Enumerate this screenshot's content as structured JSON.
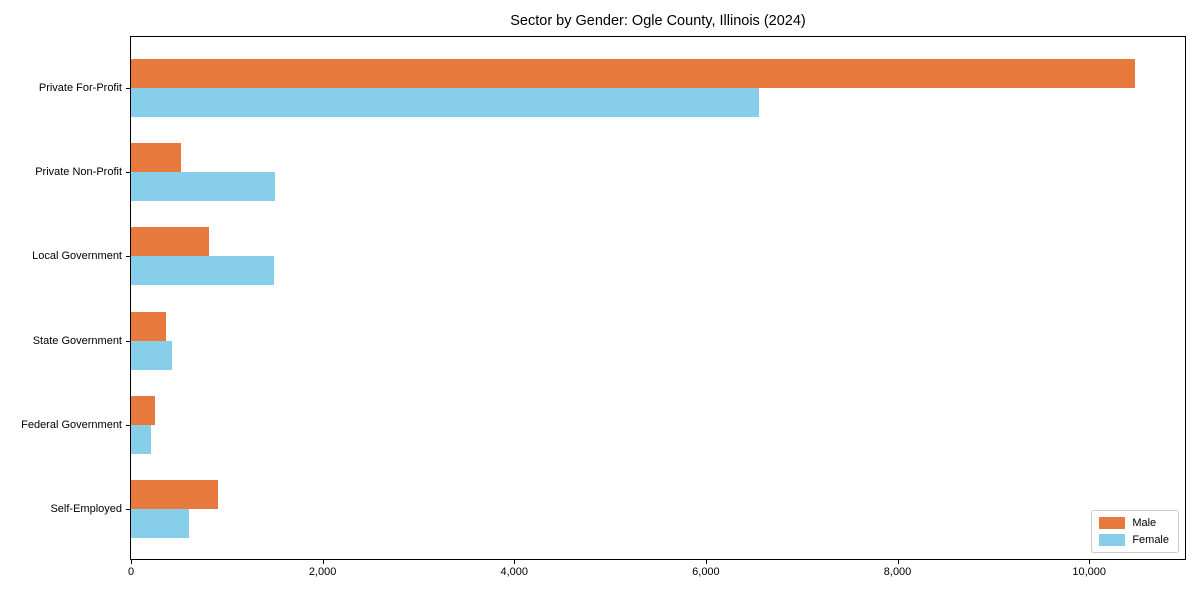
{
  "chart_data": {
    "type": "bar",
    "orientation": "horizontal",
    "title": "Sector by Gender: Ogle County, Illinois (2024)",
    "categories": [
      "Private For-Profit",
      "Private Non-Profit",
      "Local Government",
      "State Government",
      "Federal Government",
      "Self-Employed"
    ],
    "series": [
      {
        "name": "Male",
        "color": "#e8793d",
        "values": [
          10480,
          520,
          810,
          365,
          250,
          910
        ]
      },
      {
        "name": "Female",
        "color": "#87ceeb",
        "values": [
          6550,
          1500,
          1490,
          430,
          210,
          605
        ]
      }
    ],
    "xlim": [
      0,
      11000
    ],
    "xticks": [
      0,
      2000,
      4000,
      6000,
      8000,
      10000
    ],
    "xtick_labels": [
      "0",
      "2,000",
      "4,000",
      "6,000",
      "8,000",
      "10,000"
    ],
    "grid": false,
    "legend_position": "lower right",
    "bar_order_note": "Male bar drawn above Female bar within each category group"
  }
}
